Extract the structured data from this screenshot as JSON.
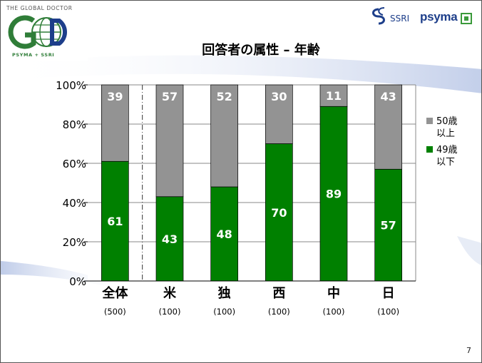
{
  "slide": {
    "title": "回答者の属性 – 年齢",
    "page_number": "7"
  },
  "logos": {
    "left_tagline": "THE GLOBAL DOCTOR",
    "left_sub": "PSYMA + SSRI",
    "right_ssri": "SSRI",
    "right_psyma": "psyma"
  },
  "colors": {
    "over50": "#939393",
    "under49": "#008000",
    "label_text": "#ffffff"
  },
  "chart_data": {
    "type": "bar",
    "stacked": true,
    "categories": [
      "全体",
      "米",
      "独",
      "西",
      "中",
      "日"
    ],
    "sample_sizes": [
      "(500)",
      "(100)",
      "(100)",
      "(100)",
      "(100)",
      "(100)"
    ],
    "series": [
      {
        "name": "49歳以下",
        "values": [
          61,
          43,
          48,
          70,
          89,
          57
        ]
      },
      {
        "name": "50歳以上",
        "values": [
          39,
          57,
          52,
          30,
          11,
          43
        ]
      }
    ],
    "legend": [
      {
        "line1": "50歳",
        "line2": "以上",
        "series": 1
      },
      {
        "line1": "49歳",
        "line2": "以下",
        "series": 0
      }
    ],
    "yticks": [
      "0%",
      "20%",
      "40%",
      "60%",
      "80%",
      "100%"
    ],
    "ylim": [
      0,
      100
    ],
    "grid": true,
    "legend_position": "right"
  }
}
